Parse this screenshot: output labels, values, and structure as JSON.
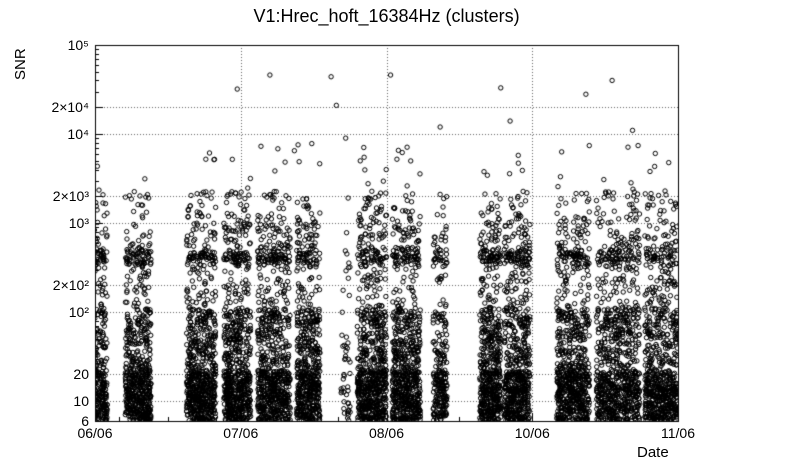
{
  "chart_data": {
    "type": "scatter",
    "title": "V1:Hrec_hoft_16384Hz (clusters)",
    "xlabel": "Date",
    "ylabel": "SNR",
    "x_scale": "time",
    "y_scale": "log",
    "ylim": [
      6,
      100000
    ],
    "grid": true,
    "background": "#ffffff",
    "frame_color": "#000000",
    "grid_color": "#666666",
    "marker": {
      "shape": "open-circle",
      "color": "#000000",
      "radius": 2.2
    },
    "x_axis": {
      "ticks": [
        {
          "pos": 0.0,
          "label": "06/06"
        },
        {
          "pos": 0.25,
          "label": "07/06"
        },
        {
          "pos": 0.5,
          "label": "08/06"
        },
        {
          "pos": 0.75,
          "label": "10/06"
        },
        {
          "pos": 1.0,
          "label": "11/06"
        }
      ]
    },
    "y_axis": {
      "ticks": [
        {
          "value": 100000,
          "label": "10⁵"
        },
        {
          "value": 20000,
          "label": "2×10⁴"
        },
        {
          "value": 10000,
          "label": "10⁴"
        },
        {
          "value": 2000,
          "label": "2×10³"
        },
        {
          "value": 1000,
          "label": "10³"
        },
        {
          "value": 200,
          "label": "2×10²"
        },
        {
          "value": 100,
          "label": "10²"
        },
        {
          "value": 20,
          "label": "20"
        },
        {
          "value": 10,
          "label": "10"
        },
        {
          "value": 6,
          "label": "6"
        }
      ]
    },
    "seed": 987123,
    "y_bands": [
      {
        "weight": 0.52,
        "min": 6,
        "max": 22
      },
      {
        "weight": 0.26,
        "min": 22,
        "max": 110
      },
      {
        "weight": 0.118,
        "min": 110,
        "max": 1000
      },
      {
        "weight": 0.055,
        "type": "gauss",
        "log_mean": 2.62,
        "log_sigma": 0.05
      },
      {
        "weight": 0.024,
        "min": 1000,
        "max": 2300
      },
      {
        "weight": 0.019,
        "min": 300,
        "max": 2300
      },
      {
        "weight": 0.004,
        "min": 2300,
        "max": 9000
      }
    ],
    "clusters": [
      {
        "x": 0.01,
        "halfwidth": 0.011,
        "n": 280
      },
      {
        "x": 0.074,
        "halfwidth": 0.022,
        "n": 620
      },
      {
        "x": 0.182,
        "halfwidth": 0.025,
        "n": 730
      },
      {
        "x": 0.244,
        "halfwidth": 0.023,
        "n": 680
      },
      {
        "x": 0.307,
        "halfwidth": 0.028,
        "n": 740
      },
      {
        "x": 0.366,
        "halfwidth": 0.02,
        "n": 580
      },
      {
        "x": 0.43,
        "halfwidth": 0.008,
        "n": 50
      },
      {
        "x": 0.475,
        "halfwidth": 0.025,
        "n": 720
      },
      {
        "x": 0.534,
        "halfwidth": 0.024,
        "n": 680
      },
      {
        "x": 0.592,
        "halfwidth": 0.012,
        "n": 260
      },
      {
        "x": 0.678,
        "halfwidth": 0.018,
        "n": 560
      },
      {
        "x": 0.724,
        "halfwidth": 0.022,
        "n": 640
      },
      {
        "x": 0.82,
        "halfwidth": 0.028,
        "n": 740
      },
      {
        "x": 0.897,
        "halfwidth": 0.037,
        "n": 840
      },
      {
        "x": 0.971,
        "halfwidth": 0.028,
        "n": 700
      }
    ],
    "outlier_points": [
      {
        "x": 0.205,
        "y": 5200
      },
      {
        "x": 0.244,
        "y": 32000
      },
      {
        "x": 0.3,
        "y": 46000
      },
      {
        "x": 0.342,
        "y": 6500
      },
      {
        "x": 0.405,
        "y": 44000
      },
      {
        "x": 0.414,
        "y": 21000
      },
      {
        "x": 0.43,
        "y": 9000
      },
      {
        "x": 0.455,
        "y": 5000
      },
      {
        "x": 0.507,
        "y": 46000
      },
      {
        "x": 0.527,
        "y": 6200
      },
      {
        "x": 0.592,
        "y": 12000
      },
      {
        "x": 0.696,
        "y": 33000
      },
      {
        "x": 0.712,
        "y": 14000
      },
      {
        "x": 0.842,
        "y": 28000
      },
      {
        "x": 0.887,
        "y": 40000
      },
      {
        "x": 0.922,
        "y": 11000
      },
      {
        "x": 0.952,
        "y": 3800
      }
    ]
  }
}
